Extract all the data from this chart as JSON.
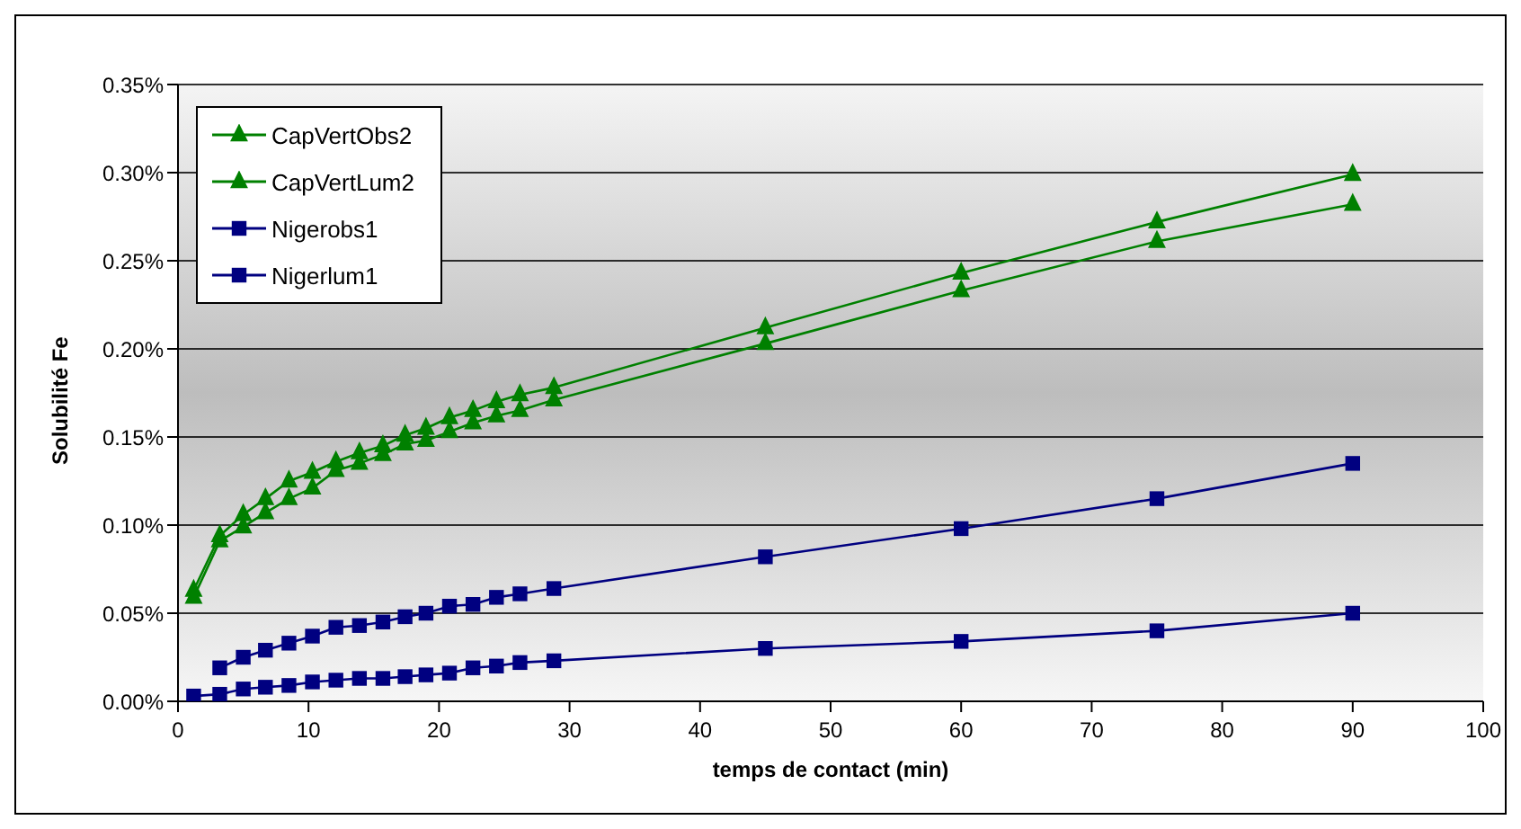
{
  "chart_data": {
    "type": "line",
    "xlabel": "temps de contact (min)",
    "ylabel": "Solubilité Fe",
    "x": [
      1.2,
      3.2,
      5,
      6.7,
      8.5,
      10.3,
      12.1,
      13.9,
      15.7,
      17.4,
      19,
      20.8,
      22.6,
      24.4,
      26.2,
      28.8,
      45,
      60,
      75,
      90
    ],
    "series": [
      {
        "name": "CapVertObs2",
        "color": "#008000",
        "marker": "triangle",
        "values": [
          0.059,
          0.091,
          0.099,
          0.107,
          0.115,
          0.121,
          0.131,
          0.135,
          0.14,
          0.146,
          0.148,
          0.153,
          0.158,
          0.162,
          0.165,
          0.171,
          0.203,
          0.233,
          0.261,
          0.282
        ]
      },
      {
        "name": "CapVertLum2",
        "color": "#008000",
        "marker": "triangle",
        "values": [
          0.063,
          0.094,
          0.106,
          0.115,
          0.125,
          0.13,
          0.136,
          0.141,
          0.145,
          0.151,
          0.155,
          0.161,
          0.165,
          0.17,
          0.174,
          0.178,
          0.212,
          0.243,
          0.272,
          0.299
        ]
      },
      {
        "name": "Nigerobs1",
        "color": "#000080",
        "marker": "square",
        "values": [
          0.003,
          0.004,
          0.007,
          0.008,
          0.009,
          0.011,
          0.012,
          0.013,
          0.013,
          0.014,
          0.015,
          0.016,
          0.019,
          0.02,
          0.022,
          0.023,
          0.03,
          0.034,
          0.04,
          0.05
        ]
      },
      {
        "name": "Nigerlum1",
        "color": "#000080",
        "marker": "square",
        "values": [
          null,
          0.019,
          0.025,
          0.029,
          0.033,
          0.037,
          0.042,
          0.043,
          0.045,
          0.048,
          0.05,
          0.054,
          0.055,
          0.059,
          0.061,
          0.064,
          0.082,
          0.098,
          0.115,
          0.135
        ]
      }
    ],
    "xlim": [
      0,
      100
    ],
    "xticks": [
      0,
      10,
      20,
      30,
      40,
      50,
      60,
      70,
      80,
      90,
      100
    ],
    "ylim": [
      0,
      0.35
    ],
    "yticks": [
      {
        "value": 0,
        "label": "0.00%"
      },
      {
        "value": 0.05,
        "label": "0.05%"
      },
      {
        "value": 0.1,
        "label": "0.10%"
      },
      {
        "value": 0.15,
        "label": "0.15%"
      },
      {
        "value": 0.2,
        "label": "0.20%"
      },
      {
        "value": 0.25,
        "label": "0.25%"
      },
      {
        "value": 0.3,
        "label": "0.30%"
      },
      {
        "value": 0.35,
        "label": "0.35%"
      }
    ],
    "grid": "y",
    "legend": "top left",
    "line_style": "solid"
  }
}
